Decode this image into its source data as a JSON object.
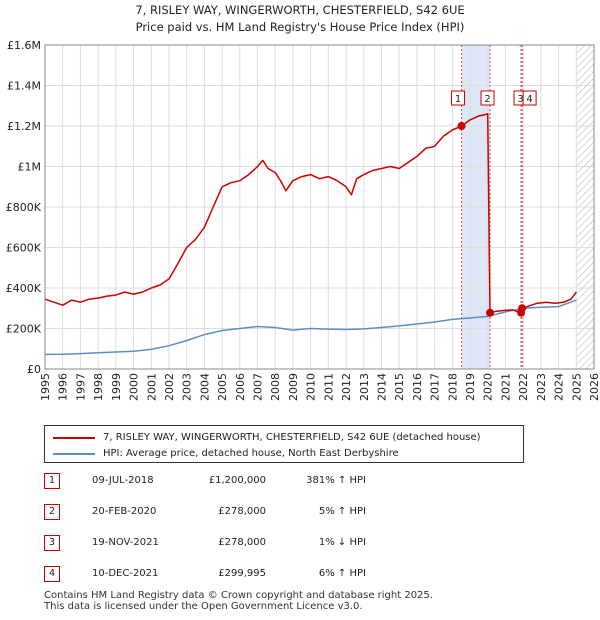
{
  "colors": {
    "property": "#cc0000",
    "hpi": "#5b8fc9",
    "band": "#dde7f6",
    "hatch": "#bbbbbb"
  },
  "title_line1": "7, RISLEY WAY, WINGERWORTH, CHESTERFIELD, S42 6UE",
  "title_line2": "Price paid vs. HM Land Registry's House Price Index (HPI)",
  "legend": {
    "property_label": "7, RISLEY WAY, WINGERWORTH, CHESTERFIELD, S42 6UE (detached house)",
    "hpi_label": "HPI: Average price, detached house, North East Derbyshire"
  },
  "transactions": [
    {
      "num": "1",
      "date": "09-JUL-2018",
      "price": "£1,200,000",
      "delta": "381% ↑ HPI"
    },
    {
      "num": "2",
      "date": "20-FEB-2020",
      "price": "£278,000",
      "delta": "5% ↑ HPI"
    },
    {
      "num": "3",
      "date": "19-NOV-2021",
      "price": "£278,000",
      "delta": "1% ↓ HPI"
    },
    {
      "num": "4",
      "date": "10-DEC-2021",
      "price": "£299,995",
      "delta": "6% ↑ HPI"
    }
  ],
  "footer_line1": "Contains HM Land Registry data © Crown copyright and database right 2025.",
  "footer_line2": "This data is licensed under the Open Government Licence v3.0.",
  "chart_data": {
    "type": "line",
    "title": "7, RISLEY WAY, WINGERWORTH, CHESTERFIELD, S42 6UE — Price paid vs. HM Land Registry's House Price Index (HPI)",
    "xlim": [
      1995,
      2026
    ],
    "ylim": [
      0,
      1600000
    ],
    "x_ticks": [
      "1995",
      "1996",
      "1997",
      "1998",
      "1999",
      "2000",
      "2001",
      "2002",
      "2003",
      "2004",
      "2005",
      "2006",
      "2007",
      "2008",
      "2009",
      "2010",
      "2011",
      "2012",
      "2013",
      "2014",
      "2015",
      "2016",
      "2017",
      "2018",
      "2019",
      "2020",
      "2021",
      "2022",
      "2023",
      "2024",
      "2025",
      "2026"
    ],
    "y_ticks": [
      {
        "value": 0,
        "label": "£0"
      },
      {
        "value": 200000,
        "label": "£200K"
      },
      {
        "value": 400000,
        "label": "£400K"
      },
      {
        "value": 600000,
        "label": "£600K"
      },
      {
        "value": 800000,
        "label": "£800K"
      },
      {
        "value": 1000000,
        "label": "£1M"
      },
      {
        "value": 1200000,
        "label": "£1.2M"
      },
      {
        "value": 1400000,
        "label": "£1.4M"
      },
      {
        "value": 1600000,
        "label": "£1.6M"
      }
    ],
    "grid": true,
    "shaded_region": [
      2018.52,
      2020.13
    ],
    "hatched_from": 2025.0,
    "series": [
      {
        "name": "7, RISLEY WAY, WINGERWORTH, CHESTERFIELD, S42 6UE (detached house)",
        "points": [
          [
            1995.0,
            345000
          ],
          [
            1995.5,
            330000
          ],
          [
            1996.0,
            315000
          ],
          [
            1996.5,
            340000
          ],
          [
            1997.0,
            330000
          ],
          [
            1997.5,
            345000
          ],
          [
            1998.0,
            350000
          ],
          [
            1998.5,
            360000
          ],
          [
            1999.0,
            365000
          ],
          [
            1999.5,
            380000
          ],
          [
            2000.0,
            370000
          ],
          [
            2000.5,
            380000
          ],
          [
            2001.0,
            400000
          ],
          [
            2001.5,
            415000
          ],
          [
            2002.0,
            445000
          ],
          [
            2002.5,
            520000
          ],
          [
            2003.0,
            600000
          ],
          [
            2003.5,
            640000
          ],
          [
            2004.0,
            700000
          ],
          [
            2004.5,
            800000
          ],
          [
            2005.0,
            900000
          ],
          [
            2005.5,
            920000
          ],
          [
            2006.0,
            930000
          ],
          [
            2006.5,
            960000
          ],
          [
            2007.0,
            1000000
          ],
          [
            2007.3,
            1030000
          ],
          [
            2007.6,
            990000
          ],
          [
            2008.0,
            970000
          ],
          [
            2008.3,
            930000
          ],
          [
            2008.6,
            880000
          ],
          [
            2009.0,
            930000
          ],
          [
            2009.5,
            950000
          ],
          [
            2010.0,
            960000
          ],
          [
            2010.5,
            940000
          ],
          [
            2011.0,
            950000
          ],
          [
            2011.5,
            930000
          ],
          [
            2012.0,
            900000
          ],
          [
            2012.3,
            860000
          ],
          [
            2012.6,
            940000
          ],
          [
            2013.0,
            960000
          ],
          [
            2013.5,
            980000
          ],
          [
            2014.0,
            990000
          ],
          [
            2014.5,
            1000000
          ],
          [
            2015.0,
            990000
          ],
          [
            2015.5,
            1020000
          ],
          [
            2016.0,
            1050000
          ],
          [
            2016.5,
            1090000
          ],
          [
            2017.0,
            1100000
          ],
          [
            2017.5,
            1150000
          ],
          [
            2018.0,
            1180000
          ],
          [
            2018.52,
            1200000
          ],
          [
            2019.0,
            1230000
          ],
          [
            2019.5,
            1250000
          ],
          [
            2019.8,
            1255000
          ],
          [
            2020.0,
            1260000
          ],
          [
            2020.13,
            278000
          ],
          [
            2020.5,
            285000
          ],
          [
            2021.0,
            290000
          ],
          [
            2021.4,
            292000
          ],
          [
            2021.88,
            278000
          ],
          [
            2021.94,
            299995
          ],
          [
            2022.3,
            310000
          ],
          [
            2022.8,
            325000
          ],
          [
            2023.3,
            330000
          ],
          [
            2023.8,
            325000
          ],
          [
            2024.3,
            330000
          ],
          [
            2024.7,
            345000
          ],
          [
            2025.0,
            380000
          ]
        ]
      },
      {
        "name": "HPI: Average price, detached house, North East Derbyshire",
        "points": [
          [
            1995.0,
            72000
          ],
          [
            1996.0,
            73000
          ],
          [
            1997.0,
            76000
          ],
          [
            1998.0,
            80000
          ],
          [
            1999.0,
            84000
          ],
          [
            2000.0,
            88000
          ],
          [
            2001.0,
            97000
          ],
          [
            2002.0,
            115000
          ],
          [
            2003.0,
            140000
          ],
          [
            2004.0,
            170000
          ],
          [
            2005.0,
            190000
          ],
          [
            2006.0,
            200000
          ],
          [
            2007.0,
            210000
          ],
          [
            2008.0,
            205000
          ],
          [
            2009.0,
            192000
          ],
          [
            2010.0,
            200000
          ],
          [
            2011.0,
            197000
          ],
          [
            2012.0,
            195000
          ],
          [
            2013.0,
            198000
          ],
          [
            2014.0,
            205000
          ],
          [
            2015.0,
            213000
          ],
          [
            2016.0,
            222000
          ],
          [
            2017.0,
            232000
          ],
          [
            2018.0,
            245000
          ],
          [
            2019.0,
            252000
          ],
          [
            2020.0,
            260000
          ],
          [
            2021.0,
            282000
          ],
          [
            2022.0,
            300000
          ],
          [
            2023.0,
            305000
          ],
          [
            2024.0,
            308000
          ],
          [
            2025.0,
            340000
          ]
        ]
      }
    ],
    "sales": [
      {
        "num": "1",
        "x": 2018.52,
        "y": 1200000
      },
      {
        "num": "2",
        "x": 2020.13,
        "y": 278000
      },
      {
        "num": "3",
        "x": 2021.88,
        "y": 278000
      },
      {
        "num": "4",
        "x": 2021.94,
        "y": 299995
      }
    ]
  }
}
